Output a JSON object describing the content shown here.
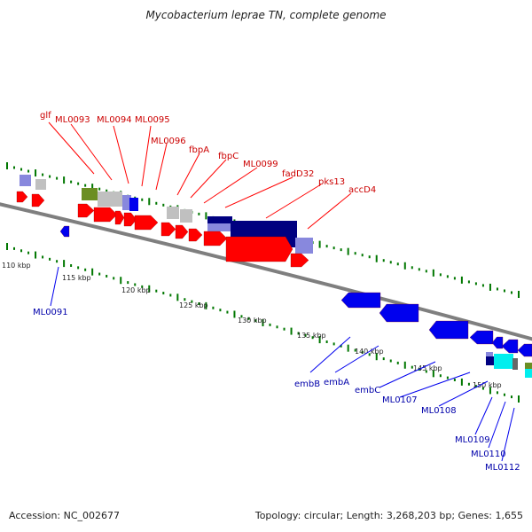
{
  "title": "Mycobacterium leprae TN, complete genome",
  "footer": {
    "accession": "Accession: NC_002677",
    "summary": "Topology: circular; Length: 3,268,203 bp; Genes: 1,655"
  },
  "colors": {
    "forward_gene": "#ff0000",
    "reverse_gene": "#0000ee",
    "forward_label": "#cc0000",
    "reverse_label": "#0000aa",
    "backbone": "#7f7f7f",
    "tick": "#007700",
    "navy": "#000080",
    "lavender": "#8888dd",
    "olive": "#6b8e23",
    "gray": "#c0c0c0",
    "cyan": "#00eeee"
  },
  "ruler": {
    "ticks": [
      "110 kbp",
      "115 kbp",
      "120 kbp",
      "125 kbp",
      "130 kbp",
      "135 kbp",
      "140 kbp",
      "145 kbp",
      "150 kbp"
    ]
  },
  "forward_labels": [
    "glf",
    "ML0093",
    "ML0094",
    "ML0095",
    "ML0096",
    "fbpA",
    "fbpC",
    "ML0099",
    "fadD32",
    "pks13",
    "accD4"
  ],
  "reverse_labels": [
    "ML0091",
    "embB",
    "embA",
    "embC",
    "ML0107",
    "ML0108",
    "ML0109",
    "ML0110",
    "ML0112"
  ]
}
